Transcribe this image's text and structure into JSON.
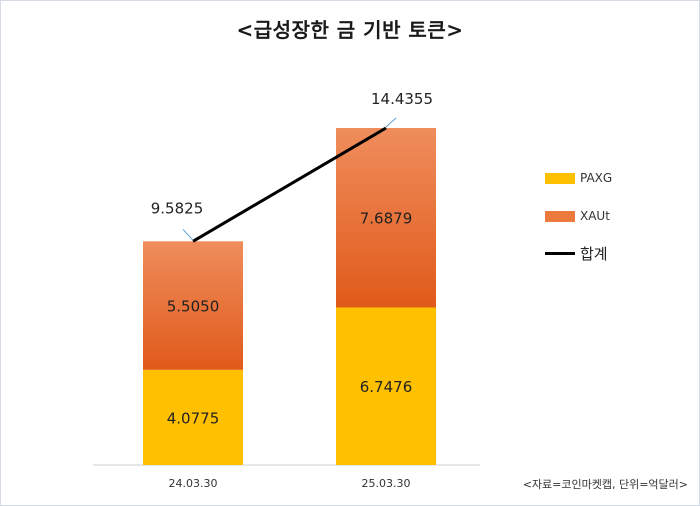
{
  "title": "<급성장한 금 기반 토큰>",
  "source_note": "<자료=코인마켓캡, 단위=억달러>",
  "chart_data": {
    "type": "bar",
    "stacked": true,
    "categories": [
      "24.03.30",
      "25.03.30"
    ],
    "series": [
      {
        "name": "PAXG",
        "values": [
          4.0775,
          6.7476
        ],
        "labels": [
          "4.0775",
          "6.7476"
        ],
        "color": "#ffc000"
      },
      {
        "name": "XAUt",
        "values": [
          5.505,
          7.6879
        ],
        "labels": [
          "5.5050",
          "7.6879"
        ],
        "color": "#ec7a3c"
      }
    ],
    "total": {
      "name": "합계",
      "values": [
        9.5825,
        14.4355
      ],
      "labels": [
        "9.5825",
        "14.4355"
      ],
      "color": "#000000"
    },
    "ylim": [
      0,
      14.4355
    ],
    "legend_position": "right",
    "grid": false
  }
}
